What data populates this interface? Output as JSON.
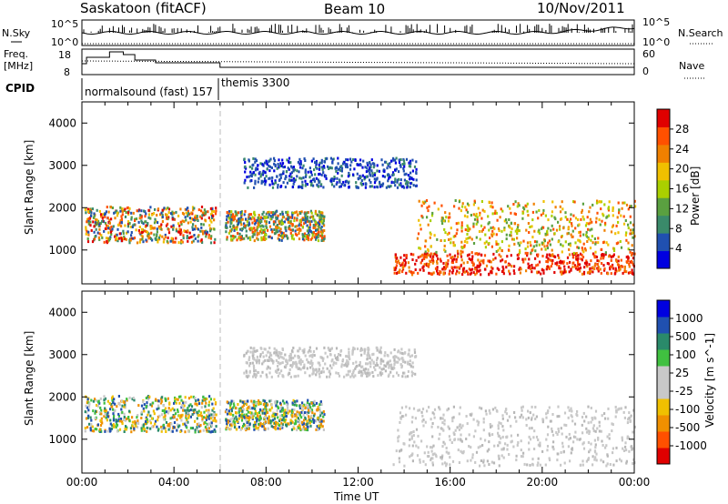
{
  "header": {
    "station": "Saskatoon (fitACF)",
    "beam": "Beam 10",
    "date": "10/Nov/2011"
  },
  "top_panels": {
    "nsky_label": "N.Sky",
    "nsky_left_ticks": [
      "10^5",
      "10^0"
    ],
    "nsearch_label": "N.Search",
    "nsearch_right_ticks": [
      "10^5",
      "10^0"
    ],
    "freq_label_1": "Freq.",
    "freq_label_2": "[MHz]",
    "freq_ticks": [
      "18",
      "8"
    ],
    "nave_label": "Nave",
    "nave_ticks": [
      "60",
      "0"
    ],
    "cpid_label": "CPID",
    "cpid_modes": [
      {
        "name": "normalsound (fast) 157",
        "start_hour": 0
      },
      {
        "name": "themis 3300",
        "start_hour": 6
      }
    ]
  },
  "colors": {
    "power_scale": [
      "#0000e0",
      "#2050b0",
      "#3a8a6a",
      "#5aa040",
      "#aad000",
      "#f0c000",
      "#f08000",
      "#ff5000",
      "#e00000"
    ],
    "velocity_scale": [
      "#e00000",
      "#ff5000",
      "#f09000",
      "#f0c000",
      "#c8c8c8",
      "#c8c8c8",
      "#40c040",
      "#2a8a6a",
      "#2050b0",
      "#0000e0"
    ]
  },
  "chart_data": [
    {
      "type": "heatmap",
      "name_label": "Power",
      "ylabel": "Slant Range [km]",
      "y_ticks": [
        "1000",
        "2000",
        "3000",
        "4000"
      ],
      "ylim": [
        200,
        4500
      ],
      "colorbar_label": "Power [dB]",
      "colorbar_ticks": [
        "4",
        "8",
        "12",
        "16",
        "20",
        "24",
        "28"
      ],
      "regions": [
        {
          "t0": 0.1,
          "t1": 5.8,
          "r0": 1200,
          "r1": 2050,
          "level": "mixed-high"
        },
        {
          "t0": 6.2,
          "t1": 10.5,
          "r0": 1250,
          "r1": 1950,
          "level": "mixed"
        },
        {
          "t0": 7.0,
          "t1": 14.5,
          "r0": 2500,
          "r1": 3200,
          "level": "low"
        },
        {
          "t0": 13.5,
          "t1": 24.0,
          "r0": 450,
          "r1": 950,
          "level": "high"
        },
        {
          "t0": 14.5,
          "t1": 24.0,
          "r0": 950,
          "r1": 2200,
          "level": "medium"
        }
      ]
    },
    {
      "type": "heatmap",
      "name_label": "Velocity",
      "ylabel": "Slant Range [km]",
      "y_ticks": [
        "1000",
        "2000",
        "3000",
        "4000"
      ],
      "ylim": [
        200,
        4500
      ],
      "colorbar_label": "Velocity [m s^-1]",
      "colorbar_ticks": [
        "1000",
        "500",
        "100",
        "25",
        "-25",
        "-100",
        "-500",
        "-1000"
      ],
      "regions": [
        {
          "t0": 0.1,
          "t1": 5.8,
          "r0": 1200,
          "r1": 2050,
          "level": "mixed"
        },
        {
          "t0": 6.2,
          "t1": 10.5,
          "r0": 1250,
          "r1": 1950,
          "level": "mixed"
        },
        {
          "t0": 7.0,
          "t1": 14.5,
          "r0": 2500,
          "r1": 3200,
          "level": "ground"
        },
        {
          "t0": 13.5,
          "t1": 24.0,
          "r0": 400,
          "r1": 1800,
          "level": "ground"
        }
      ]
    }
  ],
  "x_axis": {
    "label": "Time UT",
    "ticks": [
      "00:00",
      "04:00",
      "08:00",
      "12:00",
      "16:00",
      "20:00",
      "00:00"
    ],
    "xlim_hours": [
      0,
      24
    ]
  }
}
